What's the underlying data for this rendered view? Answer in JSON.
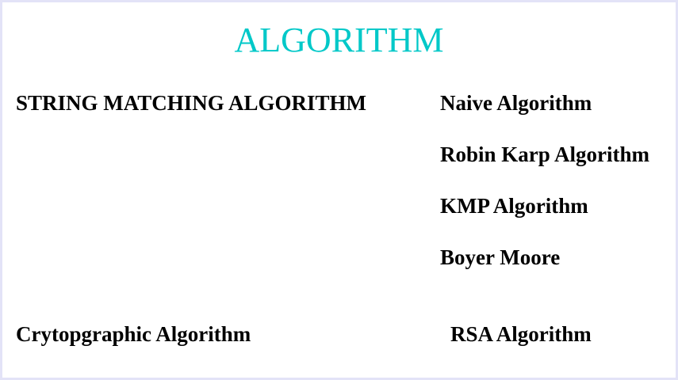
{
  "title": "ALGORITHM",
  "title_color": "#00c8c8",
  "categories": [
    {
      "name": "STRING MATCHING ALGORITHM",
      "items": [
        "Naive Algorithm",
        "Robin Karp Algorithm",
        "KMP Algorithm",
        "Boyer Moore"
      ]
    },
    {
      "name": "Crytopgraphic Algorithm",
      "items": [
        "RSA Algorithm"
      ]
    }
  ]
}
